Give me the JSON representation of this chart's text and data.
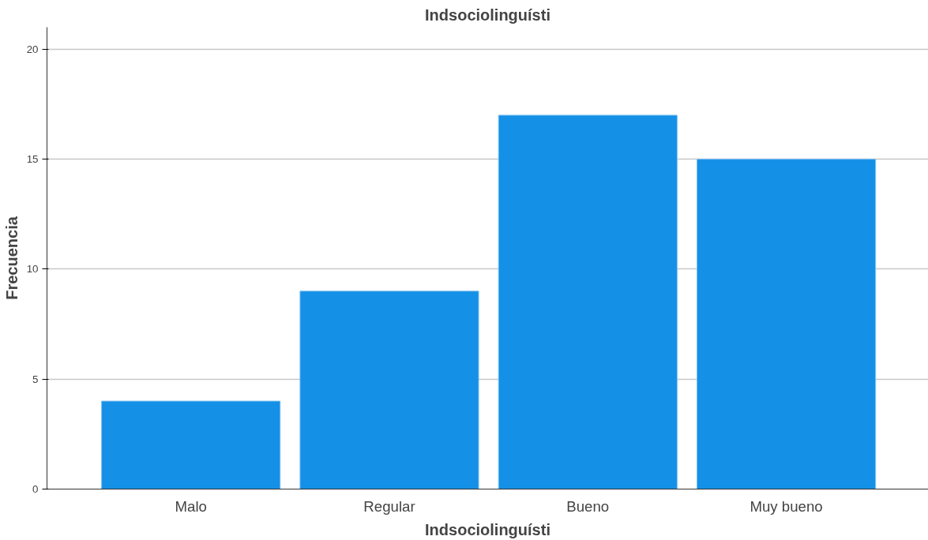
{
  "chart_data": {
    "type": "bar",
    "title": "Indsociolinguísti",
    "xlabel": "Indsociolinguísti",
    "ylabel": "Frecuencia",
    "categories": [
      "Malo",
      "Regular",
      "Bueno",
      "Muy bueno"
    ],
    "values": [
      4,
      9,
      17,
      15
    ],
    "color": "#1490e6",
    "ylim": [
      0,
      21
    ],
    "yticks": [
      0,
      5,
      10,
      15,
      20
    ],
    "grid": "y"
  }
}
